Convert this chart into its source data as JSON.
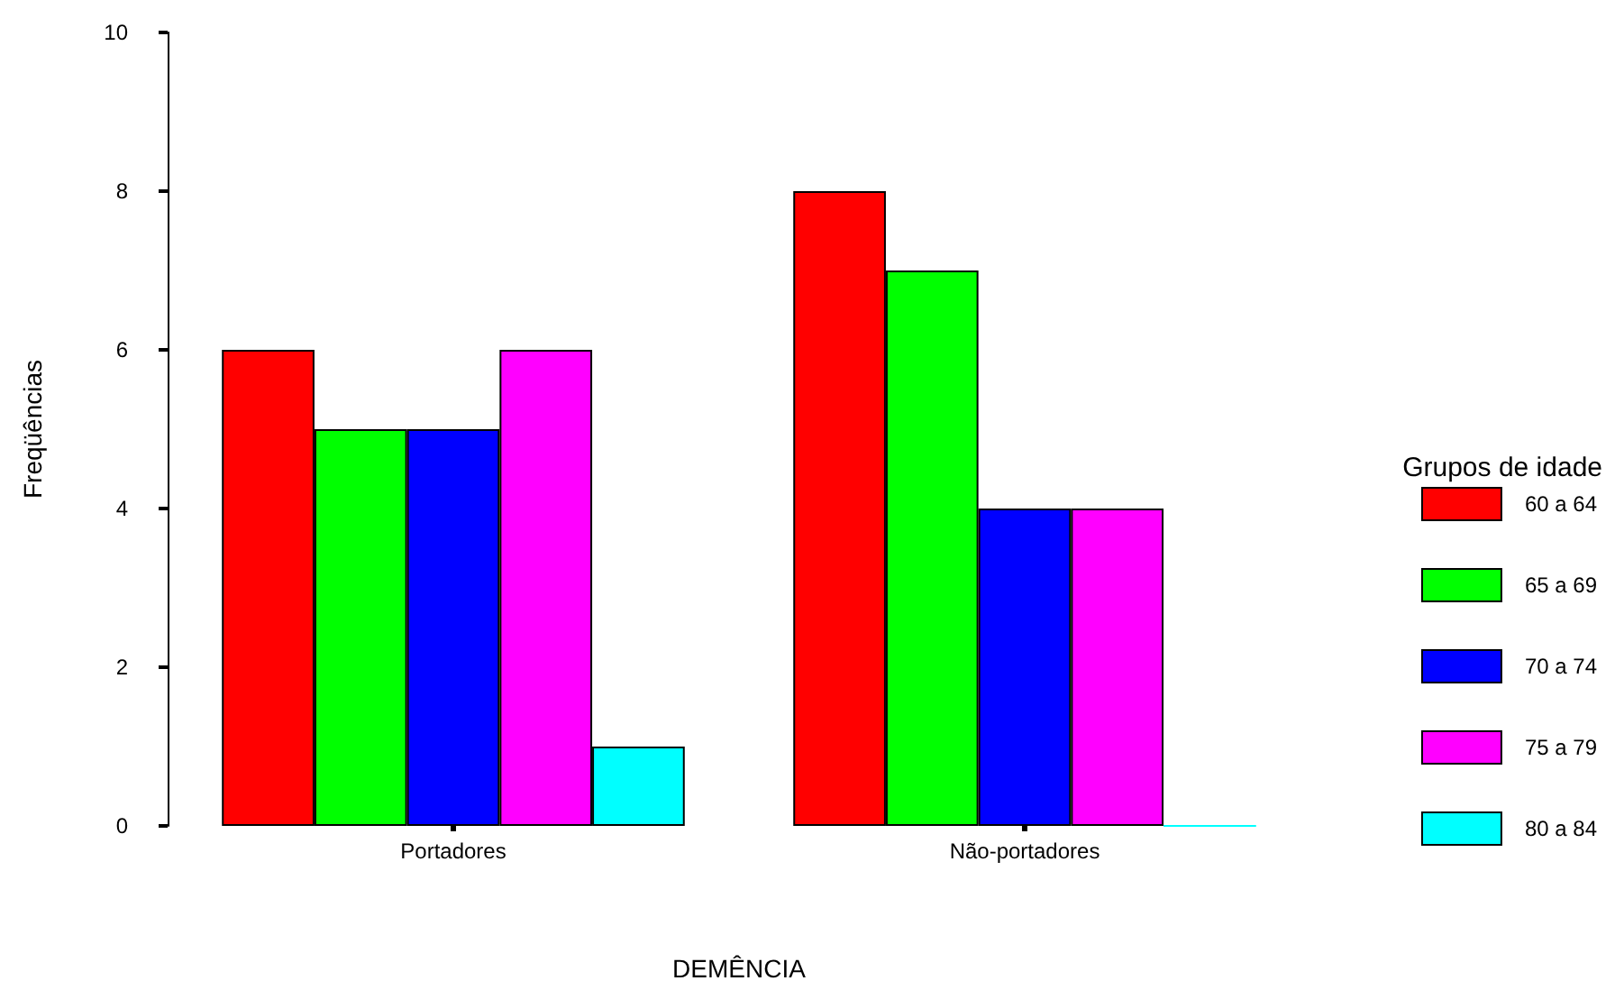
{
  "chart_data": {
    "type": "bar",
    "xlabel": "DEMÊNCIA",
    "ylabel": "Freqüências",
    "legend_title": "Grupos de idade",
    "categories": [
      "Portadores",
      "Não-portadores"
    ],
    "series": [
      {
        "name": "60 a 64",
        "color": "#ff0000",
        "values": [
          6,
          8
        ]
      },
      {
        "name": "65 a 69",
        "color": "#00ff00",
        "values": [
          5,
          7
        ]
      },
      {
        "name": "70 a 74",
        "color": "#0000ff",
        "values": [
          5,
          4
        ]
      },
      {
        "name": "75 a 79",
        "color": "#ff00ff",
        "values": [
          6,
          4
        ]
      },
      {
        "name": "80 a 84",
        "color": "#00ffff",
        "values": [
          1,
          0
        ]
      }
    ],
    "ylim": [
      0,
      10
    ],
    "yticks": [
      0,
      2,
      4,
      6,
      8,
      10
    ],
    "grid": false,
    "legend": "right"
  }
}
